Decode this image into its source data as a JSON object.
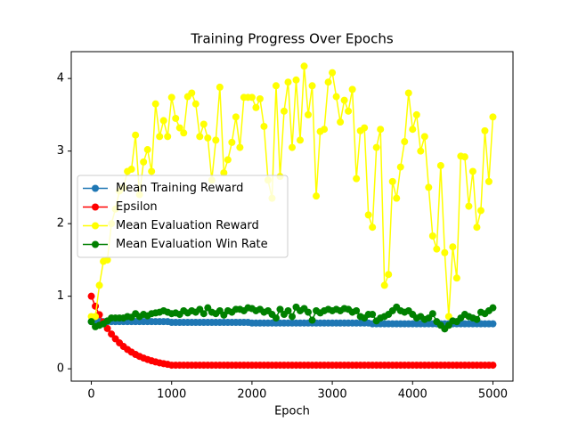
{
  "chart_data": {
    "type": "line",
    "title": "Training Progress Over Epochs",
    "x_label": "Epoch",
    "x": [
      0,
      50,
      100,
      150,
      200,
      250,
      300,
      350,
      400,
      450,
      500,
      550,
      600,
      650,
      700,
      750,
      800,
      850,
      900,
      950,
      1000,
      1050,
      1100,
      1150,
      1200,
      1250,
      1300,
      1350,
      1400,
      1450,
      1500,
      1550,
      1600,
      1650,
      1700,
      1750,
      1800,
      1850,
      1900,
      1950,
      2000,
      2050,
      2100,
      2150,
      2200,
      2250,
      2300,
      2350,
      2400,
      2450,
      2500,
      2550,
      2600,
      2650,
      2700,
      2750,
      2800,
      2850,
      2900,
      2950,
      3000,
      3050,
      3100,
      3150,
      3200,
      3250,
      3300,
      3350,
      3400,
      3450,
      3500,
      3550,
      3600,
      3650,
      3700,
      3750,
      3800,
      3850,
      3900,
      3950,
      4000,
      4050,
      4100,
      4150,
      4200,
      4250,
      4300,
      4350,
      4400,
      4450,
      4500,
      4550,
      4600,
      4650,
      4700,
      4750,
      4800,
      4850,
      4900,
      4950,
      5000
    ],
    "xlim": [
      -250,
      5250
    ],
    "xticks": [
      0,
      1000,
      2000,
      3000,
      4000,
      5000
    ],
    "ylim": [
      -0.17,
      4.37
    ],
    "yticks": [
      0,
      1,
      2,
      3,
      4
    ],
    "legend": "center left",
    "series": [
      {
        "name": "Mean Training Reward",
        "color": "#1f77b4",
        "values": [
          0.65,
          0.65,
          0.65,
          0.65,
          0.65,
          0.65,
          0.65,
          0.65,
          0.65,
          0.65,
          0.65,
          0.65,
          0.65,
          0.65,
          0.65,
          0.65,
          0.65,
          0.65,
          0.65,
          0.65,
          0.64,
          0.64,
          0.64,
          0.64,
          0.64,
          0.64,
          0.64,
          0.64,
          0.64,
          0.64,
          0.64,
          0.64,
          0.64,
          0.64,
          0.64,
          0.64,
          0.64,
          0.64,
          0.64,
          0.64,
          0.63,
          0.63,
          0.63,
          0.63,
          0.63,
          0.63,
          0.63,
          0.63,
          0.63,
          0.63,
          0.63,
          0.63,
          0.63,
          0.63,
          0.63,
          0.63,
          0.63,
          0.63,
          0.63,
          0.63,
          0.63,
          0.63,
          0.63,
          0.63,
          0.63,
          0.63,
          0.63,
          0.63,
          0.63,
          0.63,
          0.62,
          0.62,
          0.62,
          0.62,
          0.62,
          0.62,
          0.62,
          0.62,
          0.62,
          0.62,
          0.62,
          0.62,
          0.62,
          0.62,
          0.62,
          0.62,
          0.62,
          0.62,
          0.62,
          0.62,
          0.62,
          0.62,
          0.62,
          0.62,
          0.62,
          0.62,
          0.62,
          0.62,
          0.62,
          0.62,
          0.62
        ]
      },
      {
        "name": "Epsilon",
        "color": "#ff0000",
        "values": [
          1.0,
          0.863,
          0.745,
          0.643,
          0.555,
          0.479,
          0.414,
          0.357,
          0.308,
          0.266,
          0.23,
          0.198,
          0.171,
          0.148,
          0.128,
          0.11,
          0.095,
          0.082,
          0.071,
          0.061,
          0.05,
          0.05,
          0.05,
          0.05,
          0.05,
          0.05,
          0.05,
          0.05,
          0.05,
          0.05,
          0.05,
          0.05,
          0.05,
          0.05,
          0.05,
          0.05,
          0.05,
          0.05,
          0.05,
          0.05,
          0.05,
          0.05,
          0.05,
          0.05,
          0.05,
          0.05,
          0.05,
          0.05,
          0.05,
          0.05,
          0.05,
          0.05,
          0.05,
          0.05,
          0.05,
          0.05,
          0.05,
          0.05,
          0.05,
          0.05,
          0.05,
          0.05,
          0.05,
          0.05,
          0.05,
          0.05,
          0.05,
          0.05,
          0.05,
          0.05,
          0.05,
          0.05,
          0.05,
          0.05,
          0.05,
          0.05,
          0.05,
          0.05,
          0.05,
          0.05,
          0.05,
          0.05,
          0.05,
          0.05,
          0.05,
          0.05,
          0.05,
          0.05,
          0.05,
          0.05,
          0.05,
          0.05,
          0.05,
          0.05,
          0.05,
          0.05,
          0.05,
          0.05,
          0.05,
          0.05,
          0.05
        ]
      },
      {
        "name": "Mean Evaluation Reward",
        "color": "#ffff00",
        "values": [
          0.72,
          0.72,
          1.15,
          1.48,
          1.5,
          2.0,
          2.2,
          2.45,
          2.5,
          2.72,
          2.75,
          3.22,
          2.4,
          2.85,
          3.02,
          2.72,
          3.65,
          3.2,
          3.42,
          3.2,
          3.74,
          3.45,
          3.32,
          3.25,
          3.75,
          3.8,
          3.65,
          3.2,
          3.37,
          3.18,
          2.6,
          3.15,
          3.88,
          2.7,
          2.88,
          3.12,
          3.47,
          3.05,
          3.74,
          3.74,
          3.74,
          3.6,
          3.72,
          3.34,
          2.6,
          2.35,
          3.9,
          2.65,
          3.55,
          3.95,
          3.05,
          3.98,
          3.15,
          4.17,
          3.5,
          3.9,
          2.38,
          3.27,
          3.3,
          3.95,
          4.08,
          3.75,
          3.4,
          3.7,
          3.55,
          3.85,
          2.62,
          3.28,
          3.32,
          2.12,
          1.95,
          3.05,
          3.3,
          1.15,
          1.3,
          2.58,
          2.35,
          2.78,
          3.13,
          3.8,
          3.3,
          3.5,
          3.0,
          3.2,
          2.5,
          1.83,
          1.65,
          2.8,
          1.6,
          0.72,
          1.68,
          1.25,
          2.93,
          2.92,
          2.24,
          2.72,
          1.95,
          2.18,
          3.28,
          2.58,
          3.47
        ]
      },
      {
        "name": "Mean Evaluation Win Rate",
        "color": "#008000",
        "values": [
          0.65,
          0.58,
          0.6,
          0.62,
          0.66,
          0.7,
          0.7,
          0.7,
          0.7,
          0.72,
          0.71,
          0.76,
          0.72,
          0.75,
          0.73,
          0.76,
          0.77,
          0.78,
          0.8,
          0.78,
          0.76,
          0.77,
          0.75,
          0.8,
          0.77,
          0.8,
          0.78,
          0.82,
          0.76,
          0.84,
          0.78,
          0.76,
          0.8,
          0.74,
          0.8,
          0.78,
          0.82,
          0.82,
          0.8,
          0.84,
          0.83,
          0.8,
          0.82,
          0.78,
          0.8,
          0.75,
          0.7,
          0.82,
          0.75,
          0.8,
          0.72,
          0.85,
          0.8,
          0.83,
          0.78,
          0.67,
          0.8,
          0.77,
          0.8,
          0.82,
          0.8,
          0.82,
          0.8,
          0.83,
          0.82,
          0.78,
          0.8,
          0.72,
          0.7,
          0.75,
          0.75,
          0.66,
          0.7,
          0.72,
          0.75,
          0.8,
          0.85,
          0.8,
          0.78,
          0.8,
          0.75,
          0.7,
          0.72,
          0.68,
          0.7,
          0.76,
          0.65,
          0.6,
          0.55,
          0.6,
          0.66,
          0.65,
          0.7,
          0.75,
          0.72,
          0.7,
          0.68,
          0.78,
          0.76,
          0.8,
          0.84
        ]
      }
    ]
  }
}
